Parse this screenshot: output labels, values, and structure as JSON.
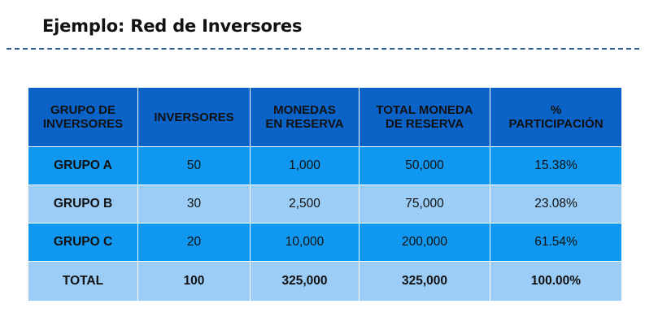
{
  "slide": {
    "title": "Ejemplo: Red de Inversores"
  },
  "table": {
    "headers": [
      [
        "GRUPO DE",
        "INVERSORES"
      ],
      [
        "INVERSORES"
      ],
      [
        "MONEDAS",
        "EN RESERVA"
      ],
      [
        "TOTAL MONEDA",
        "DE RESERVA"
      ],
      [
        "%",
        "PARTICIPACIÓN"
      ]
    ],
    "rows": [
      [
        "GRUPO A",
        "50",
        "1,000",
        "50,000",
        "15.38%"
      ],
      [
        "GRUPO B",
        "30",
        "2,500",
        "75,000",
        "23.08%"
      ],
      [
        "GRUPO C",
        "20",
        "10,000",
        "200,000",
        "61.54%"
      ]
    ],
    "total": [
      "TOTAL",
      "100",
      "325,000",
      "325,000",
      "100.00%"
    ]
  },
  "colors": {
    "header_bg": "#0b63c7",
    "row_dark_bg": "#1097f0",
    "row_light_bg": "#9ccdf7",
    "title_rule": "#2d5f91"
  }
}
